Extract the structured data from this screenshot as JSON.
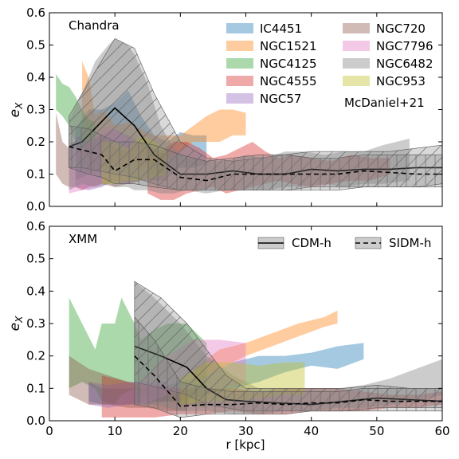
{
  "chart_data": [
    {
      "type": "area",
      "panel_label": "Chandra",
      "xlabel": "",
      "ylabel": "e_X",
      "xlim": [
        0,
        60
      ],
      "ylim": [
        0,
        0.6
      ],
      "x_ticks": [],
      "y_ticks": [
        "0.0",
        "0.1",
        "0.2",
        "0.3",
        "0.4",
        "0.5",
        "0.6"
      ],
      "legend_note": "McDaniel+21",
      "legend_placement": "top-right",
      "series": [
        {
          "name": "IC4451",
          "color": "#1f77b4",
          "x": [
            4,
            6,
            8,
            10,
            12,
            14,
            16,
            18,
            20,
            22,
            24
          ],
          "lower": [
            0.08,
            0.1,
            0.12,
            0.14,
            0.15,
            0.13,
            0.11,
            0.1,
            0.12,
            0.12,
            0.13
          ],
          "upper": [
            0.24,
            0.3,
            0.3,
            0.32,
            0.36,
            0.28,
            0.22,
            0.2,
            0.23,
            0.22,
            0.22
          ]
        },
        {
          "name": "NGC1521",
          "color": "#ff7f0e",
          "x": [
            5,
            6,
            7,
            8,
            9,
            10,
            12,
            14,
            16,
            18,
            20,
            22,
            24,
            26,
            28,
            30
          ],
          "lower": [
            0.15,
            0.12,
            0.1,
            0.12,
            0.1,
            0.12,
            0.13,
            0.12,
            0.14,
            0.15,
            0.17,
            0.2,
            0.2,
            0.2,
            0.22,
            0.22
          ],
          "upper": [
            0.45,
            0.4,
            0.28,
            0.3,
            0.28,
            0.25,
            0.26,
            0.24,
            0.22,
            0.22,
            0.22,
            0.25,
            0.28,
            0.3,
            0.3,
            0.29
          ]
        },
        {
          "name": "NGC4125",
          "color": "#2ca02c",
          "x": [
            1,
            2,
            3,
            4,
            5,
            6,
            7
          ],
          "lower": [
            0.3,
            0.28,
            0.25,
            0.2,
            0.18,
            0.15,
            0.12
          ],
          "upper": [
            0.41,
            0.38,
            0.37,
            0.34,
            0.3,
            0.27,
            0.26
          ]
        },
        {
          "name": "NGC4555",
          "color": "#d62728",
          "x": [
            15,
            17,
            19,
            21,
            23,
            25,
            27,
            29,
            31,
            33,
            35,
            37,
            40,
            43,
            46,
            49,
            52
          ],
          "lower": [
            0.04,
            0.02,
            0.02,
            0.04,
            0.05,
            0.06,
            0.04,
            0.05,
            0.06,
            0.07,
            0.08,
            0.07,
            0.06,
            0.07,
            0.08,
            0.08,
            0.1
          ],
          "upper": [
            0.18,
            0.17,
            0.2,
            0.2,
            0.18,
            0.15,
            0.16,
            0.18,
            0.2,
            0.17,
            0.15,
            0.16,
            0.15,
            0.14,
            0.16,
            0.15,
            0.15
          ]
        },
        {
          "name": "NGC57",
          "color": "#9467bd",
          "x": [
            4,
            6,
            8,
            10,
            12,
            14,
            16,
            18
          ],
          "lower": [
            0.06,
            0.05,
            0.06,
            0.08,
            0.07,
            0.08,
            0.1,
            0.1
          ],
          "upper": [
            0.22,
            0.2,
            0.22,
            0.24,
            0.22,
            0.2,
            0.18,
            0.17
          ]
        },
        {
          "name": "NGC720",
          "color": "#8c564b",
          "x": [
            1,
            2,
            3,
            4,
            5,
            6,
            8,
            10,
            12,
            14,
            16,
            18
          ],
          "lower": [
            0.1,
            0.07,
            0.06,
            0.06,
            0.05,
            0.06,
            0.07,
            0.06,
            0.07,
            0.08,
            0.08,
            0.08
          ],
          "upper": [
            0.29,
            0.2,
            0.18,
            0.2,
            0.18,
            0.2,
            0.22,
            0.18,
            0.17,
            0.2,
            0.17,
            0.16
          ]
        },
        {
          "name": "NGC7796",
          "color": "#e377c2",
          "x": [
            3,
            5,
            7,
            9,
            11,
            13,
            15
          ],
          "lower": [
            0.04,
            0.05,
            0.06,
            0.08,
            0.07,
            0.1,
            0.08
          ],
          "upper": [
            0.2,
            0.18,
            0.22,
            0.25,
            0.22,
            0.2,
            0.18
          ]
        },
        {
          "name": "NGC6482",
          "color": "#7f7f7f",
          "x": [
            3,
            5,
            7,
            9,
            10,
            12,
            13,
            15,
            17,
            19,
            21,
            24,
            27,
            30,
            33,
            36,
            39,
            42,
            45,
            48,
            51,
            55
          ],
          "lower": [
            0.05,
            0.07,
            0.06,
            0.07,
            0.06,
            0.06,
            0.05,
            0.05,
            0.04,
            0.04,
            0.05,
            0.04,
            0.05,
            0.05,
            0.05,
            0.06,
            0.06,
            0.07,
            0.06,
            0.07,
            0.07,
            0.08
          ],
          "upper": [
            0.27,
            0.35,
            0.45,
            0.5,
            0.52,
            0.5,
            0.47,
            0.38,
            0.25,
            0.18,
            0.15,
            0.14,
            0.14,
            0.16,
            0.15,
            0.17,
            0.17,
            0.16,
            0.17,
            0.17,
            0.19,
            0.21
          ]
        },
        {
          "name": "NGC953",
          "color": "#bcbd22",
          "x": [
            8,
            10,
            12,
            14,
            16,
            18
          ],
          "lower": [
            0.07,
            0.07,
            0.08,
            0.08,
            0.09,
            0.1
          ],
          "upper": [
            0.2,
            0.2,
            0.18,
            0.22,
            0.2,
            0.17
          ]
        }
      ],
      "median_lines": [
        {
          "style": "solid",
          "x": [
            3,
            5,
            10,
            13,
            16,
            20,
            24,
            28,
            32,
            36,
            40,
            44,
            48,
            52,
            56,
            60
          ],
          "y": [
            0.185,
            0.2,
            0.305,
            0.25,
            0.16,
            0.1,
            0.1,
            0.11,
            0.1,
            0.1,
            0.115,
            0.11,
            0.115,
            0.115,
            0.12,
            0.12
          ],
          "band_lower": [
            0.12,
            0.12,
            0.1,
            0.09,
            0.07,
            0.05,
            0.05,
            0.05,
            0.05,
            0.05,
            0.06,
            0.06,
            0.06,
            0.06,
            0.06,
            0.07
          ],
          "band_upper": [
            0.28,
            0.35,
            0.52,
            0.49,
            0.35,
            0.2,
            0.15,
            0.14,
            0.15,
            0.16,
            0.17,
            0.17,
            0.17,
            0.17,
            0.18,
            0.19
          ]
        },
        {
          "style": "dashed",
          "x": [
            3,
            6,
            8,
            10,
            13,
            16,
            20,
            24,
            28,
            32,
            36,
            40,
            44,
            48,
            52,
            56,
            60
          ],
          "y": [
            0.185,
            0.17,
            0.16,
            0.11,
            0.145,
            0.145,
            0.09,
            0.08,
            0.1,
            0.1,
            0.1,
            0.1,
            0.1,
            0.11,
            0.105,
            0.1,
            0.1
          ],
          "band_lower": [
            0.12,
            0.1,
            0.09,
            0.07,
            0.07,
            0.06,
            0.05,
            0.05,
            0.05,
            0.05,
            0.05,
            0.05,
            0.05,
            0.06,
            0.06,
            0.06,
            0.06
          ],
          "band_upper": [
            0.25,
            0.24,
            0.22,
            0.2,
            0.2,
            0.19,
            0.16,
            0.14,
            0.15,
            0.16,
            0.16,
            0.15,
            0.15,
            0.16,
            0.16,
            0.16,
            0.16
          ]
        }
      ]
    },
    {
      "type": "area",
      "panel_label": "XMM",
      "xlabel": "r [kpc]",
      "ylabel": "e_X",
      "xlim": [
        0,
        60
      ],
      "ylim": [
        0,
        0.6
      ],
      "x_ticks": [
        "0",
        "10",
        "20",
        "30",
        "40",
        "50",
        "60"
      ],
      "y_ticks": [
        "0.0",
        "0.1",
        "0.2",
        "0.3",
        "0.4",
        "0.5",
        "0.6"
      ],
      "legend": [
        {
          "name": "CDM-h",
          "line": "solid",
          "color": "#7f7f7f"
        },
        {
          "name": "SIDM-h",
          "line": "dashed",
          "color": "#7f7f7f"
        }
      ],
      "legend_placement": "top-right",
      "series": [
        {
          "name": "IC4451",
          "color": "#1f77b4",
          "x": [
            6,
            8,
            12,
            16,
            20,
            24,
            28,
            32,
            36,
            40,
            44,
            48
          ],
          "lower": [
            0.06,
            0.05,
            0.05,
            0.06,
            0.06,
            0.08,
            0.1,
            0.12,
            0.15,
            0.17,
            0.16,
            0.19
          ],
          "upper": [
            0.12,
            0.1,
            0.1,
            0.1,
            0.12,
            0.14,
            0.18,
            0.2,
            0.2,
            0.21,
            0.23,
            0.24
          ]
        },
        {
          "name": "NGC1521",
          "color": "#ff7f0e",
          "x": [
            22,
            26,
            30,
            34,
            38,
            42,
            44
          ],
          "lower": [
            0.12,
            0.16,
            0.2,
            0.23,
            0.26,
            0.29,
            0.3
          ],
          "upper": [
            0.16,
            0.22,
            0.24,
            0.27,
            0.3,
            0.32,
            0.34
          ]
        },
        {
          "name": "NGC4125",
          "color": "#2ca02c",
          "x": [
            3,
            5,
            7,
            8,
            10,
            11,
            13,
            14,
            16,
            18,
            21,
            24
          ],
          "lower": [
            0.1,
            0.12,
            0.1,
            0.06,
            0.05,
            0.08,
            0.1,
            0.08,
            0.06,
            0.06,
            0.05,
            0.04
          ],
          "upper": [
            0.38,
            0.3,
            0.22,
            0.3,
            0.3,
            0.38,
            0.3,
            0.25,
            0.28,
            0.3,
            0.3,
            0.24
          ]
        },
        {
          "name": "NGC4555",
          "color": "#d62728",
          "x": [
            8,
            12,
            16,
            20,
            24,
            28,
            32,
            36,
            40,
            44,
            48,
            52,
            56,
            60
          ],
          "lower": [
            0.01,
            0.01,
            0.01,
            0.02,
            0.02,
            0.03,
            0.02,
            0.02,
            0.03,
            0.03,
            0.03,
            0.04,
            0.04,
            0.05
          ],
          "upper": [
            0.14,
            0.12,
            0.11,
            0.1,
            0.1,
            0.1,
            0.09,
            0.1,
            0.1,
            0.1,
            0.09,
            0.08,
            0.08,
            0.09
          ]
        },
        {
          "name": "NGC57",
          "color": "#9467bd",
          "x": [
            6,
            9,
            12,
            15,
            18
          ],
          "lower": [
            0.05,
            0.04,
            0.05,
            0.05,
            0.06
          ],
          "upper": [
            0.12,
            0.11,
            0.12,
            0.12,
            0.12
          ]
        },
        {
          "name": "NGC720",
          "color": "#8c564b",
          "x": [
            3,
            6,
            9,
            12,
            15,
            18,
            21
          ],
          "lower": [
            0.08,
            0.05,
            0.05,
            0.04,
            0.04,
            0.03,
            0.03
          ],
          "upper": [
            0.2,
            0.16,
            0.14,
            0.12,
            0.11,
            0.1,
            0.1
          ]
        },
        {
          "name": "NGC7796",
          "color": "#e377c2",
          "x": [
            14,
            18,
            22,
            26,
            30
          ],
          "lower": [
            0.05,
            0.08,
            0.1,
            0.1,
            0.12
          ],
          "upper": [
            0.12,
            0.2,
            0.25,
            0.25,
            0.24
          ]
        },
        {
          "name": "NGC6482",
          "color": "#7f7f7f",
          "x": [
            13,
            16,
            20,
            24,
            28,
            32,
            36,
            40,
            44,
            48,
            52,
            56,
            60
          ],
          "lower": [
            0.05,
            0.05,
            0.03,
            0.03,
            0.02,
            0.02,
            0.03,
            0.03,
            0.04,
            0.04,
            0.05,
            0.06,
            0.08
          ],
          "upper": [
            0.43,
            0.38,
            0.3,
            0.2,
            0.14,
            0.1,
            0.1,
            0.1,
            0.1,
            0.11,
            0.13,
            0.16,
            0.19
          ]
        },
        {
          "name": "NGC953",
          "color": "#bcbd22",
          "x": [
            20,
            24,
            28,
            32,
            36,
            39
          ],
          "lower": [
            0.05,
            0.06,
            0.06,
            0.07,
            0.08,
            0.08
          ],
          "upper": [
            0.13,
            0.18,
            0.18,
            0.17,
            0.18,
            0.18
          ]
        }
      ],
      "median_lines": [
        {
          "style": "solid",
          "x": [
            13,
            17,
            21,
            24,
            27,
            30,
            35,
            40,
            45,
            50,
            55,
            60
          ],
          "y": [
            0.23,
            0.2,
            0.165,
            0.1,
            0.065,
            0.06,
            0.055,
            0.05,
            0.06,
            0.07,
            0.065,
            0.06
          ],
          "band_lower": [
            0.12,
            0.1,
            0.08,
            0.05,
            0.04,
            0.03,
            0.03,
            0.03,
            0.03,
            0.04,
            0.04,
            0.04
          ],
          "band_upper": [
            0.43,
            0.38,
            0.3,
            0.22,
            0.14,
            0.1,
            0.1,
            0.1,
            0.1,
            0.11,
            0.1,
            0.1
          ]
        },
        {
          "style": "dashed",
          "x": [
            13,
            16,
            20,
            24,
            28,
            32,
            36,
            40,
            44,
            48,
            52,
            56,
            60
          ],
          "y": [
            0.2,
            0.14,
            0.045,
            0.05,
            0.05,
            0.055,
            0.05,
            0.055,
            0.055,
            0.065,
            0.06,
            0.06,
            0.06
          ],
          "band_lower": [
            0.05,
            0.04,
            0.01,
            0.02,
            0.02,
            0.02,
            0.02,
            0.03,
            0.03,
            0.03,
            0.03,
            0.03,
            0.03
          ],
          "band_upper": [
            0.32,
            0.25,
            0.12,
            0.1,
            0.09,
            0.09,
            0.09,
            0.09,
            0.09,
            0.1,
            0.1,
            0.1,
            0.1
          ]
        }
      ]
    }
  ]
}
